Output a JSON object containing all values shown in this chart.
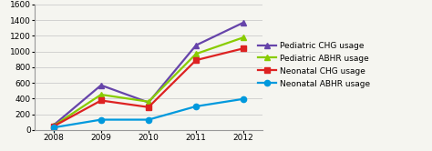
{
  "years": [
    2008,
    2009,
    2010,
    2011,
    2012
  ],
  "series": [
    {
      "label": "Pediatric CHG usage",
      "color": "#6644AA",
      "values": [
        60,
        570,
        350,
        1080,
        1370
      ],
      "marker": "^"
    },
    {
      "label": "Pediatric ABHR usage",
      "color": "#88CC00",
      "values": [
        50,
        450,
        360,
        970,
        1180
      ],
      "marker": "^"
    },
    {
      "label": "Neonatal CHG usage",
      "color": "#DD2222",
      "values": [
        45,
        375,
        290,
        890,
        1040
      ],
      "marker": "s"
    },
    {
      "label": "Neonatal ABHR usage",
      "color": "#0099DD",
      "values": [
        30,
        130,
        130,
        300,
        395
      ],
      "marker": "o"
    }
  ],
  "ylim": [
    0,
    1600
  ],
  "yticks": [
    0,
    200,
    400,
    600,
    800,
    1000,
    1200,
    1400,
    1600
  ],
  "xlim": [
    2007.6,
    2012.4
  ],
  "background_color": "#f5f5f0",
  "plot_bg": "#f5f5f0",
  "grid_color": "#cccccc",
  "legend_fontsize": 6.5,
  "tick_fontsize": 6.5,
  "linewidth": 1.6,
  "markersize": 4.5
}
